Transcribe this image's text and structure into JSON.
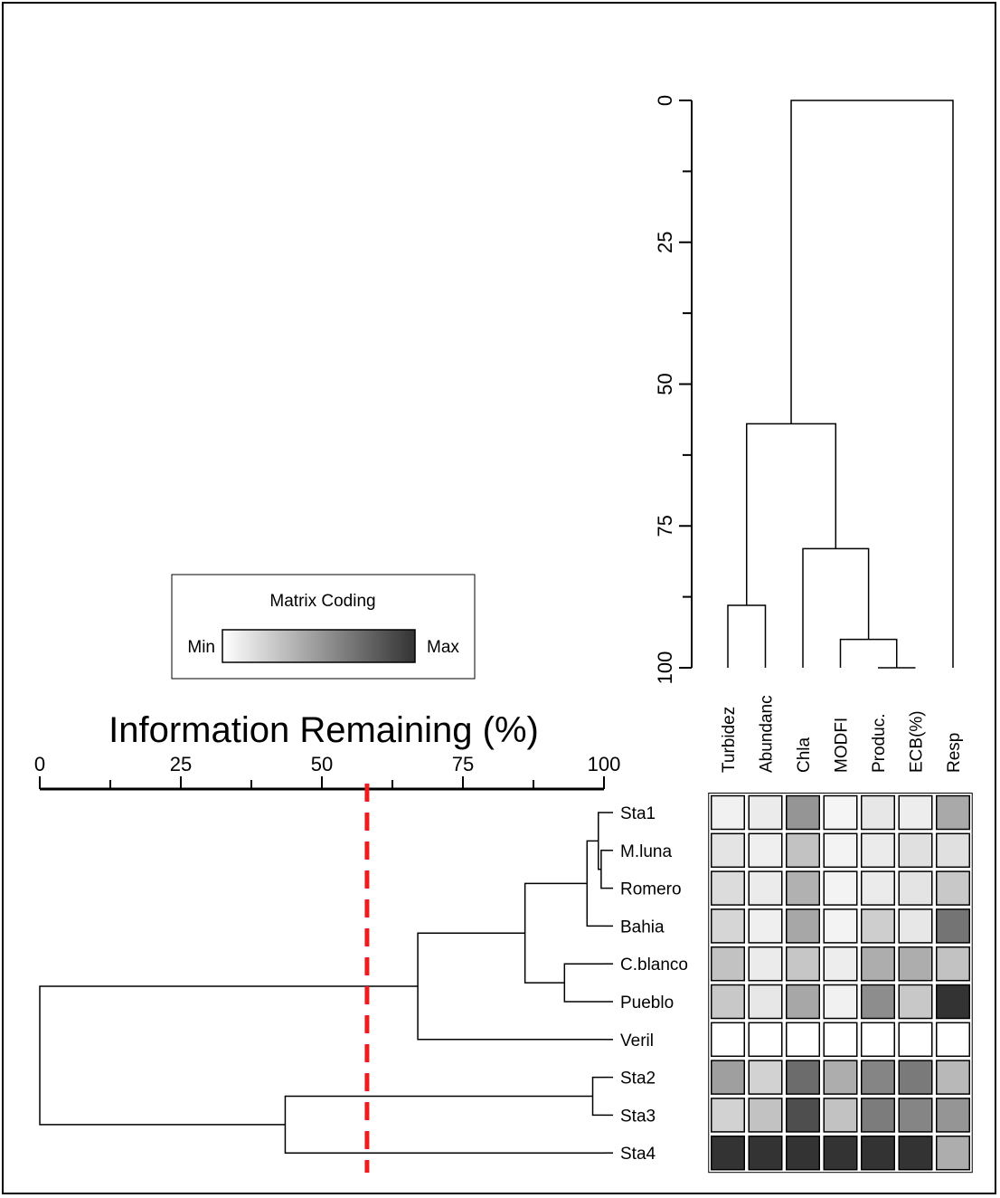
{
  "chart_data": {
    "type": "heatmap",
    "title": "",
    "rows": [
      "Sta1",
      "M.luna",
      "Romero",
      "Bahia",
      "C.blanco",
      "Pueblo",
      "Veril",
      "Sta2",
      "Sta3",
      "Sta4"
    ],
    "columns": [
      "Turbidez",
      "Abundanc",
      "Chla",
      "MODFI",
      "Produc.",
      "ECB(%)",
      "Resp"
    ],
    "shading": [
      [
        0.07,
        0.1,
        0.52,
        0.05,
        0.12,
        0.09,
        0.42
      ],
      [
        0.13,
        0.08,
        0.3,
        0.06,
        0.1,
        0.15,
        0.15
      ],
      [
        0.17,
        0.1,
        0.38,
        0.06,
        0.1,
        0.13,
        0.27
      ],
      [
        0.2,
        0.08,
        0.43,
        0.06,
        0.24,
        0.12,
        0.68
      ],
      [
        0.3,
        0.1,
        0.28,
        0.09,
        0.4,
        0.4,
        0.3
      ],
      [
        0.27,
        0.12,
        0.43,
        0.07,
        0.56,
        0.27,
        1.0
      ],
      [
        0.0,
        0.0,
        0.0,
        0.0,
        0.0,
        0.0,
        0.0
      ],
      [
        0.47,
        0.22,
        0.72,
        0.4,
        0.6,
        0.65,
        0.35
      ],
      [
        0.22,
        0.3,
        0.87,
        0.3,
        0.64,
        0.6,
        0.52
      ],
      [
        1.0,
        1.0,
        1.0,
        1.0,
        1.0,
        1.0,
        0.4
      ]
    ],
    "row_dendrogram": {
      "axis_title": "Information Remaining (%)",
      "ticks": [
        0,
        25,
        50,
        75,
        100
      ],
      "range": [
        0,
        100
      ],
      "merges": [
        {
          "a": "M.luna",
          "b": "Romero",
          "height": 99.5
        },
        {
          "a": "Sta1",
          "b": "[M.luna,Romero]",
          "height": 99.0
        },
        {
          "a": "[Sta1,M.luna,Romero]",
          "b": "Bahia",
          "height": 97.0
        },
        {
          "a": "Sta2",
          "b": "Sta3",
          "height": 98.0
        },
        {
          "a": "C.blanco",
          "b": "Pueblo",
          "height": 93.0
        },
        {
          "a": "[Sta1..Bahia]",
          "b": "[C.blanco,Pueblo]",
          "height": 86.0
        },
        {
          "a": "[Sta1..Pueblo]",
          "b": "Veril",
          "height": 67.0
        },
        {
          "a": "[Sta2,Sta3]",
          "b": "Sta4",
          "height": 43.5
        },
        {
          "a": "[Sta1..Veril]",
          "b": "[Sta2..Sta4]",
          "height": 0
        }
      ],
      "cutoff": 58
    },
    "column_dendrogram": {
      "ticks": [
        0,
        25,
        50,
        75,
        100
      ],
      "range": [
        0,
        100
      ],
      "merges": [
        {
          "a": "Produc.",
          "b": "ECB(%)",
          "height": 100
        },
        {
          "a": "MODFI",
          "b": "[Produc.,ECB(%)]",
          "height": 95
        },
        {
          "a": "Chla",
          "b": "[MODFI..ECB(%)]",
          "height": 79
        },
        {
          "a": "Turbidez",
          "b": "Abundanc",
          "height": 89
        },
        {
          "a": "[Turbidez,Abundanc]",
          "b": "[Chla..ECB(%)]",
          "height": 57
        },
        {
          "a": "[Turbidez..ECB(%)]",
          "b": "Resp",
          "height": 0
        }
      ]
    },
    "legend": {
      "title": "Matrix Coding",
      "min_label": "Min",
      "max_label": "Max"
    },
    "colors": {
      "low": "#ffffff",
      "high": "#333333",
      "cutoff_line": "#ee1c1c"
    }
  }
}
